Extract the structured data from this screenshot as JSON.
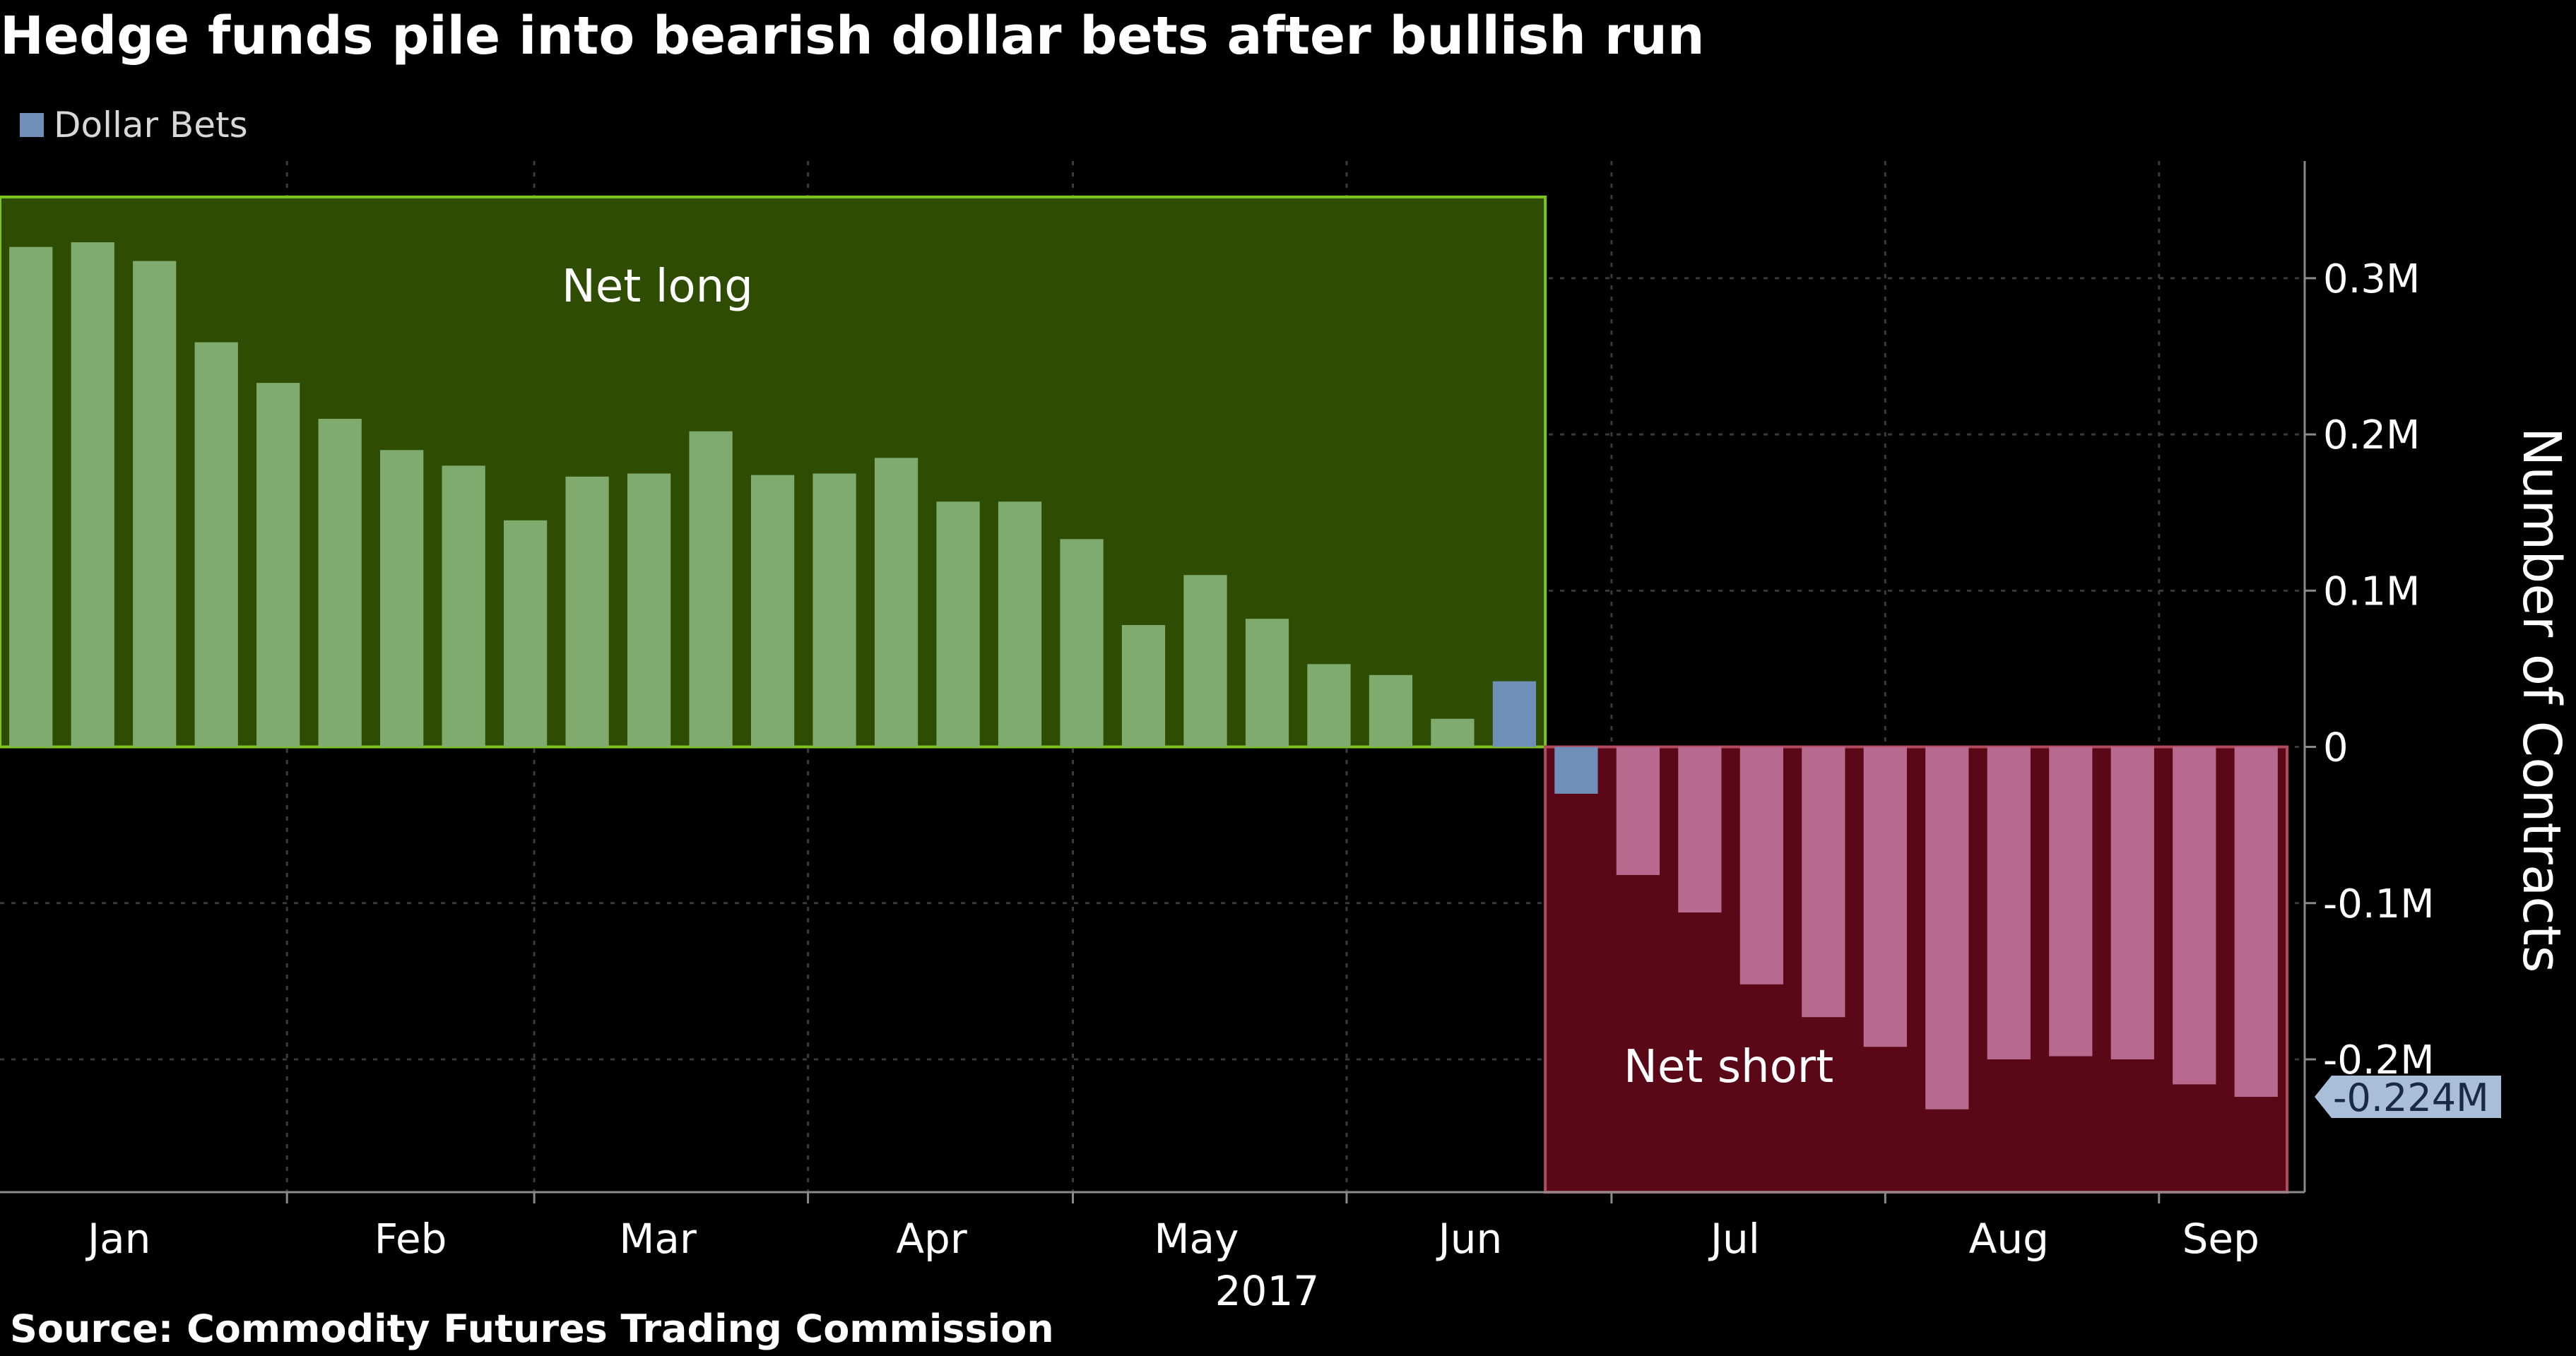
{
  "title": "Hedge funds pile into bearish dollar bets after bullish run",
  "source": "Source: Commodity Futures Trading Commission",
  "legend": {
    "label": "Dollar Bets",
    "color": "#6f8fb8"
  },
  "colors": {
    "net_long_region": "#2f4d02",
    "net_long_border": "#7dc41f",
    "net_short_region": "#5a0718",
    "net_short_border": "#b14a5e",
    "long_bar": "#7fac6e",
    "short_bar": "#b76a8e",
    "transition_bar": "#6f8fb8",
    "grid": "#3a3a3a",
    "axis": "#8a8a8a",
    "value_tag": "#a9bfd9"
  },
  "chart_data": {
    "type": "bar",
    "title": "Hedge funds pile into bearish dollar bets after bullish run",
    "series": [
      {
        "name": "Dollar Bets",
        "values": [
          0.32,
          0.323,
          0.311,
          0.259,
          0.233,
          0.21,
          0.19,
          0.18,
          0.145,
          0.173,
          0.175,
          0.202,
          0.174,
          0.175,
          0.185,
          0.157,
          0.157,
          0.133,
          0.078,
          0.11,
          0.082,
          0.053,
          0.046,
          0.018,
          0.042,
          -0.03,
          -0.082,
          -0.106,
          -0.152,
          -0.173,
          -0.192,
          -0.232,
          -0.2,
          -0.198,
          -0.2,
          -0.216,
          -0.224
        ]
      }
    ],
    "x_start": "2017-01-03",
    "x_step_days": 7,
    "x_tick_labels": [
      "Jan",
      "Feb",
      "Mar",
      "Apr",
      "May",
      "Jun",
      "Jul",
      "Aug",
      "Sep"
    ],
    "x_year_label": "2017",
    "y_label": "Number of Contracts",
    "y_ticks": [
      "0.3M",
      "0.2M",
      "0.1M",
      "0",
      "-0.1M",
      "-0.2M"
    ],
    "y_tick_values": [
      0.3,
      0.2,
      0.1,
      0,
      -0.1,
      -0.2
    ],
    "ylim": [
      -0.285,
      0.375
    ],
    "units": "million contracts",
    "last_value_label": "-0.224M",
    "annotations": [
      {
        "text": "Net long",
        "x_from": "2017-01-03",
        "x_to": "2017-06-20",
        "y_from": 0,
        "y_to": 0.352
      },
      {
        "text": "Net short",
        "x_from": "2017-06-27",
        "x_to": "2017-09-12",
        "y_from": -0.285,
        "y_to": 0
      }
    ],
    "grid": true,
    "legend_position": "top-left",
    "y_axis_side": "right"
  }
}
